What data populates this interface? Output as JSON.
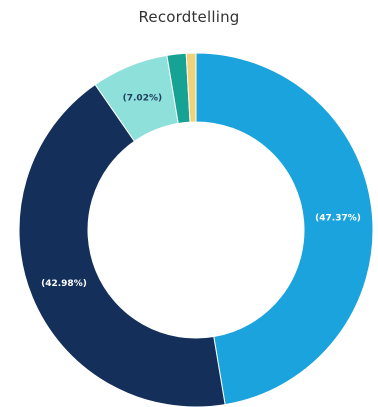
{
  "chart_data": {
    "type": "pie",
    "title": "Recordtelling",
    "style": "donut",
    "slices": [
      {
        "value": 47.37,
        "label": "(47.37%)",
        "color": "#1aa3dd",
        "label_color": "#ffffff"
      },
      {
        "value": 42.98,
        "label": "(42.98%)",
        "color": "#14305a",
        "label_color": "#ffffff"
      },
      {
        "value": 7.02,
        "label": "(7.02%)",
        "color": "#8ee0da",
        "label_color": "#1f3f5e"
      },
      {
        "value": 1.75,
        "label": "",
        "color": "#17a394",
        "label_color": "#ffffff"
      },
      {
        "value": 0.88,
        "label": "",
        "color": "#f0d27a",
        "label_color": "#ffffff"
      }
    ]
  }
}
